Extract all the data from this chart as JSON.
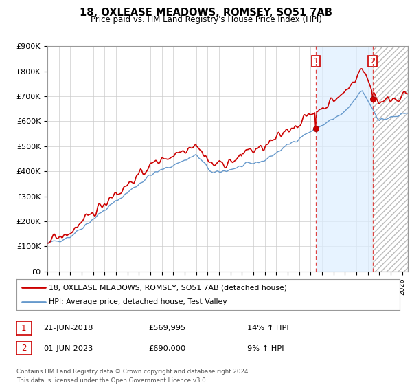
{
  "title": "18, OXLEASE MEADOWS, ROMSEY, SO51 7AB",
  "subtitle": "Price paid vs. HM Land Registry's House Price Index (HPI)",
  "ylabel_ticks": [
    "£0",
    "£100K",
    "£200K",
    "£300K",
    "£400K",
    "£500K",
    "£600K",
    "£700K",
    "£800K",
    "£900K"
  ],
  "ytick_values": [
    0,
    100000,
    200000,
    300000,
    400000,
    500000,
    600000,
    700000,
    800000,
    900000
  ],
  "ylim": [
    0,
    900000
  ],
  "xlim_start": 1995.0,
  "xlim_end": 2026.5,
  "hpi_color": "#6699cc",
  "price_color": "#cc0000",
  "vline_color": "#dd4444",
  "marker_label_color": "#cc0000",
  "fill_color": "#ddeeff",
  "transaction1_year": 2018.47,
  "transaction1_price": 569995,
  "transaction2_year": 2023.42,
  "transaction2_price": 690000,
  "legend_entry1": "18, OXLEASE MEADOWS, ROMSEY, SO51 7AB (detached house)",
  "legend_entry2": "HPI: Average price, detached house, Test Valley",
  "table_row1": [
    "1",
    "21-JUN-2018",
    "£569,995",
    "14% ↑ HPI"
  ],
  "table_row2": [
    "2",
    "01-JUN-2023",
    "£690,000",
    "9% ↑ HPI"
  ],
  "footnote": "Contains HM Land Registry data © Crown copyright and database right 2024.\nThis data is licensed under the Open Government Licence v3.0.",
  "n_points": 380
}
